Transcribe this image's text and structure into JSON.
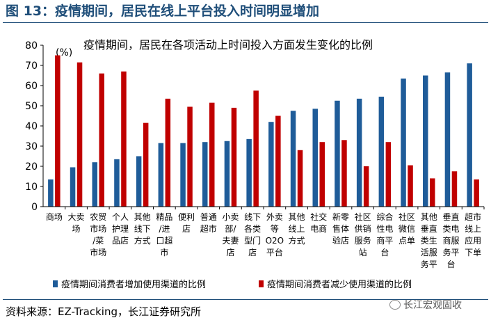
{
  "figure_title": "图 13：疫情期间，居民在线上平台投入时间明显增加",
  "source": "资料来源：EZ-Tracking，长江证券研究所",
  "watermark": "长江宏观固收",
  "colors": {
    "increase": "#1f5c99",
    "decrease": "#c00000",
    "title": "#1f4e79"
  },
  "chart_data": {
    "type": "bar",
    "title": "疫情期间，居民在各项活动上时间投入方面发生变化的比例",
    "unit_label": "(%)",
    "ylim": [
      0,
      80
    ],
    "yticks": [
      0,
      10,
      20,
      30,
      40,
      50,
      60,
      70,
      80
    ],
    "grid": false,
    "legend_position": "bottom",
    "categories": [
      "商场",
      "大卖场",
      "农贸市场/菜市场",
      "个人护理品店",
      "其他线下方式",
      "精品/进口超市",
      "便利店",
      "普通超市",
      "小卖部/夫妻店",
      "线下各类型门店",
      "外卖等O2O平台",
      "其他线上方式",
      "社交电商",
      "新零售体验店",
      "社区供销服务站",
      "综合性电商平台",
      "社区微信点单",
      "其他垂直类生活服务平台",
      "垂直类电商服务平台",
      "超市线上应用下单"
    ],
    "category_label_lines": [
      [
        "商场"
      ],
      [
        "大卖",
        "场"
      ],
      [
        "农贸",
        "市场",
        "/菜",
        "市场"
      ],
      [
        "个人",
        "护理",
        "品店"
      ],
      [
        "其他",
        "线下",
        "方式"
      ],
      [
        "精品",
        "/进",
        "口超",
        "市"
      ],
      [
        "便利",
        "店"
      ],
      [
        "普通",
        "超市"
      ],
      [
        "小卖",
        "部/",
        "夫妻",
        "店"
      ],
      [
        "线下",
        "各类",
        "型门",
        "店"
      ],
      [
        "外卖",
        "等",
        "O2O",
        "平台"
      ],
      [
        "其他",
        "线上",
        "方式"
      ],
      [
        "社交",
        "电商"
      ],
      [
        "新零",
        "售体",
        "验店"
      ],
      [
        "社区",
        "供销",
        "服务",
        "站"
      ],
      [
        "综合",
        "性电",
        "商平",
        "台"
      ],
      [
        "社区",
        "微信",
        "点单"
      ],
      [
        "其他",
        "垂直",
        "类生",
        "活服",
        "务平"
      ],
      [
        "垂直",
        "类电",
        "商服",
        "务平",
        "台"
      ],
      [
        "超市",
        "线上",
        "应用",
        "下单"
      ]
    ],
    "series": [
      {
        "name": "疫情期间消费者增加使用渠道的比例",
        "values": [
          13.5,
          19.5,
          22,
          23.5,
          25,
          31.5,
          31.5,
          32,
          32.5,
          33.5,
          42,
          47.5,
          48.5,
          52.5,
          53.5,
          54.5,
          63.5,
          65,
          66.5,
          71
        ]
      },
      {
        "name": "疫情期间消费者减少使用渠道的比例",
        "values": [
          75,
          71.5,
          66,
          67,
          41.5,
          53.5,
          49.5,
          51.5,
          49,
          57.5,
          45,
          28,
          32,
          33,
          20,
          32,
          20.5,
          14,
          17.5,
          13.5
        ]
      }
    ]
  }
}
